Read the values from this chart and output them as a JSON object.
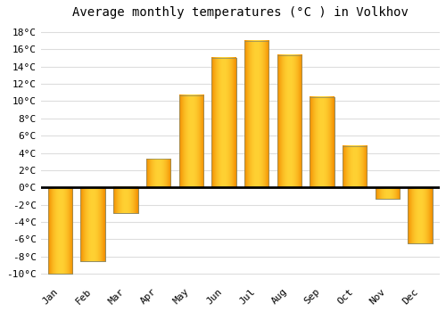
{
  "months": [
    "Jan",
    "Feb",
    "Mar",
    "Apr",
    "May",
    "Jun",
    "Jul",
    "Aug",
    "Sep",
    "Oct",
    "Nov",
    "Dec"
  ],
  "values": [
    -10,
    -8.5,
    -3,
    3.3,
    10.7,
    15,
    17,
    15.3,
    10.5,
    4.8,
    -1.3,
    -6.5
  ],
  "bar_color_main": "#FFA500",
  "bar_color_light": "#FFD050",
  "bar_edge_color": "#888866",
  "title": "Average monthly temperatures (°C ) in Volkhov",
  "title_fontsize": 10,
  "ylim": [
    -11,
    19
  ],
  "yticks": [
    -10,
    -8,
    -6,
    -4,
    -2,
    0,
    2,
    4,
    6,
    8,
    10,
    12,
    14,
    16,
    18
  ],
  "ytick_labels": [
    "-10°C",
    "-8°C",
    "-6°C",
    "-4°C",
    "-2°C",
    "0°C",
    "2°C",
    "4°C",
    "6°C",
    "8°C",
    "10°C",
    "12°C",
    "14°C",
    "16°C",
    "18°C"
  ],
  "background_color": "#ffffff",
  "plot_background": "#ffffff",
  "grid_color": "#dddddd",
  "zero_line_color": "#000000",
  "tick_label_fontsize": 8,
  "bar_width": 0.75
}
